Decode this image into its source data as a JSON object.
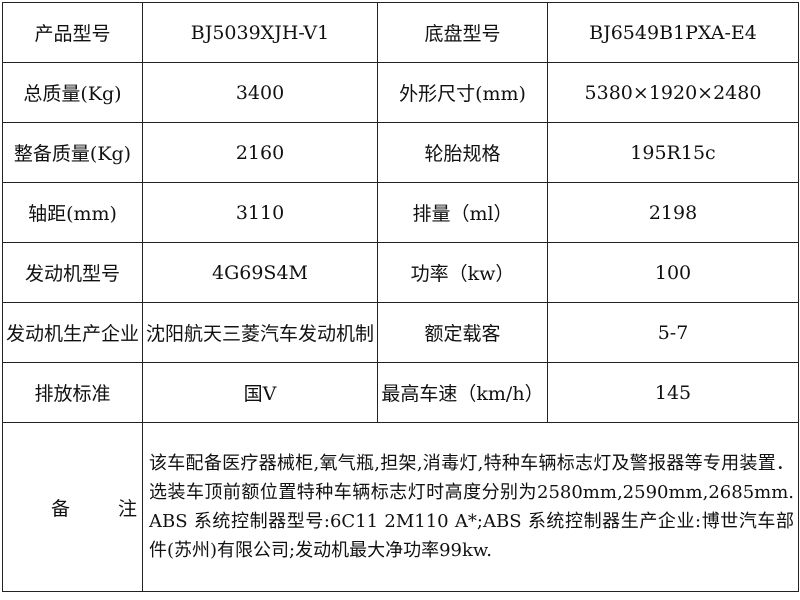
{
  "table": {
    "rows": [
      [
        "产品型号",
        "BJ5039XJH-V1",
        "底盘型号",
        "BJ6549B1PXA-E4"
      ],
      [
        "总质量(Kg)",
        "3400",
        "外形尺寸(mm)",
        "5380×1920×2480"
      ],
      [
        "整备质量(Kg)",
        "2160",
        "轮胎规格",
        "195R15c"
      ],
      [
        "轴距(mm)",
        "3110",
        "排量（ml）",
        "2198"
      ],
      [
        "发动机型号",
        "4G69S4M",
        "功率（kw）",
        "100"
      ],
      [
        "发动机生产企业",
        "沈阳航天三菱汽车发动机制",
        "额定载客",
        "5-7"
      ],
      [
        "排放标准",
        "国Ⅴ",
        "最高车速（km/h）",
        "145"
      ]
    ],
    "remarks": {
      "label": "备注",
      "text": "该车配备医疗器械柜,氧气瓶,担架,消毒灯,特种车辆标志灯及警报器等专用装置．选装车顶前额位置特种车辆标志灯时高度分别为2580mm,2590mm,2685mm. ABS 系统控制器型号:6C11 2M110 A*;ABS 系统控制器生产企业:博世汽车部件(苏州)有限公司;发动机最大净功率99kw."
    }
  }
}
